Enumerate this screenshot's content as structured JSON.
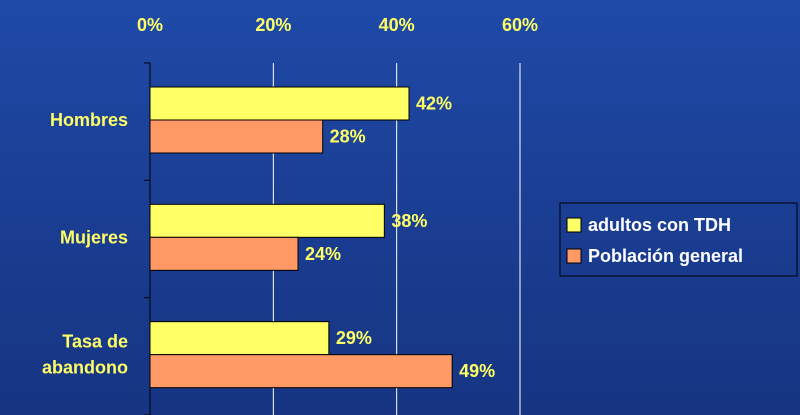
{
  "chart_data": {
    "type": "bar",
    "orientation": "horizontal",
    "categories": [
      "Hombres",
      "Mujeres",
      "Tasa de abandono"
    ],
    "category_lines": [
      [
        "Hombres"
      ],
      [
        "Mujeres"
      ],
      [
        "Tasa de",
        "abandono"
      ]
    ],
    "series": [
      {
        "name": "adultos con TDH",
        "values": [
          42,
          38,
          29
        ],
        "labels": [
          "42%",
          "38%",
          "29%"
        ],
        "color": "#ffff66"
      },
      {
        "name": "Población general",
        "values": [
          28,
          24,
          49
        ],
        "labels": [
          "28%",
          "24%",
          "49%"
        ],
        "color": "#ff9966"
      }
    ],
    "xlim": [
      0,
      60
    ],
    "x_ticks": [
      0,
      20,
      40,
      60
    ],
    "x_tick_labels": [
      "0%",
      "20%",
      "40%",
      "60%"
    ],
    "x_axis_position": "top",
    "grid": true,
    "legend_position": "right",
    "title": "",
    "xlabel": "",
    "ylabel": "",
    "colors": {
      "text": "#ffff66",
      "grid": "#ffffff",
      "bar_outline": "#000000",
      "legend_text": "#ffffff",
      "legend_border": "#000000"
    }
  }
}
